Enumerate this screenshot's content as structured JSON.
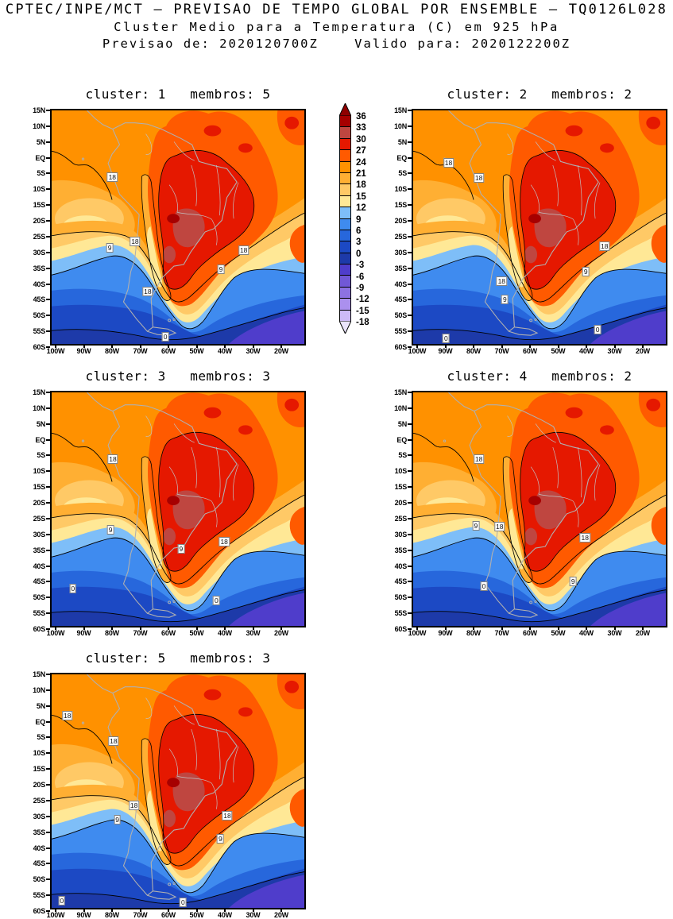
{
  "header": {
    "line1": "CPTEC/INPE/MCT – PREVISAO DE TEMPO GLOBAL POR ENSEMBLE – TQ0126L028",
    "line2": "Cluster Medio para a Temperatura (C) em 925 hPa",
    "line3": "Previsao de: 2020120700Z    Valido para: 2020122200Z"
  },
  "axes": {
    "lat_labels": [
      "15N",
      "10N",
      "5N",
      "EQ",
      "5S",
      "10S",
      "15S",
      "20S",
      "25S",
      "30S",
      "35S",
      "40S",
      "45S",
      "50S",
      "55S",
      "60S"
    ],
    "lon_labels": [
      "100W",
      "90W",
      "80W",
      "70W",
      "60W",
      "50W",
      "40W",
      "30W",
      "20W"
    ]
  },
  "colorbar": {
    "levels": [
      "36",
      "33",
      "30",
      "27",
      "24",
      "21",
      "18",
      "15",
      "12",
      "9",
      "6",
      "3",
      "0",
      "-3",
      "-6",
      "-9",
      "-12",
      "-15",
      "-18"
    ],
    "cell_colors": [
      "#A60000",
      "#BF4640",
      "#E51800",
      "#FF5A00",
      "#FF9100",
      "#FFAF33",
      "#FFC966",
      "#FFE896",
      "#7EBEF8",
      "#3F8BEF",
      "#2767DC",
      "#1C49C4",
      "#1D3AA9",
      "#4F3DCB",
      "#7158D6",
      "#8D72E2",
      "#AB90EE",
      "#CDBAF6"
    ],
    "arrow_top_color": "#8F0000",
    "arrow_bottom_color": "#EAE4FB"
  },
  "chart_data": {
    "type": "heatmap",
    "title": "CPTEC/INPE/MCT – PREVISAO DE TEMPO GLOBAL POR ENSEMBLE – TQ0126L028",
    "subtitle": "Cluster Medio para a Temperatura (C) em 925 hPa",
    "forecast_init": "2020120700Z",
    "forecast_valid": "2020122200Z",
    "model": "TQ0126L028",
    "variable": "Temperatura (C) em 925 hPa",
    "lat_range": [
      "15N",
      "60S"
    ],
    "lon_range": [
      "100W",
      "20W"
    ],
    "contour_interval_c": 3,
    "labeled_contours_c": [
      0,
      9,
      18
    ],
    "colorbar_levels_c": [
      36,
      33,
      30,
      27,
      24,
      21,
      18,
      15,
      12,
      9,
      6,
      3,
      0,
      -3,
      -6,
      -9,
      -12,
      -15,
      -18
    ],
    "panels": [
      {
        "title": "cluster: 1   membros: 5",
        "cluster": 1,
        "membros": 5,
        "contour_labels": [
          {
            "t": "18",
            "x": 0.24,
            "y": 0.285
          },
          {
            "t": "18",
            "x": 0.33,
            "y": 0.56
          },
          {
            "t": "9",
            "x": 0.23,
            "y": 0.59
          },
          {
            "t": "18",
            "x": 0.76,
            "y": 0.6
          },
          {
            "t": "9",
            "x": 0.67,
            "y": 0.68
          },
          {
            "t": "18",
            "x": 0.38,
            "y": 0.775
          },
          {
            "t": "0",
            "x": 0.45,
            "y": 0.97
          }
        ]
      },
      {
        "title": "cluster: 2   membros: 2",
        "cluster": 2,
        "membros": 2,
        "contour_labels": [
          {
            "t": "18",
            "x": 0.14,
            "y": 0.225
          },
          {
            "t": "18",
            "x": 0.26,
            "y": 0.29
          },
          {
            "t": "18",
            "x": 0.757,
            "y": 0.58
          },
          {
            "t": "9",
            "x": 0.683,
            "y": 0.69
          },
          {
            "t": "18",
            "x": 0.35,
            "y": 0.73
          },
          {
            "t": "9",
            "x": 0.363,
            "y": 0.81
          },
          {
            "t": "0",
            "x": 0.73,
            "y": 0.94
          },
          {
            "t": "0",
            "x": 0.13,
            "y": 0.975
          }
        ]
      },
      {
        "title": "cluster: 3   membros: 3",
        "cluster": 3,
        "membros": 3,
        "contour_labels": [
          {
            "t": "18",
            "x": 0.242,
            "y": 0.285
          },
          {
            "t": "9",
            "x": 0.233,
            "y": 0.59
          },
          {
            "t": "9",
            "x": 0.512,
            "y": 0.67
          },
          {
            "t": "18",
            "x": 0.683,
            "y": 0.64
          },
          {
            "t": "0",
            "x": 0.084,
            "y": 0.84
          },
          {
            "t": "0",
            "x": 0.652,
            "y": 0.89
          }
        ]
      },
      {
        "title": "cluster: 4   membros: 2",
        "cluster": 4,
        "membros": 2,
        "contour_labels": [
          {
            "t": "18",
            "x": 0.26,
            "y": 0.285
          },
          {
            "t": "9",
            "x": 0.248,
            "y": 0.57
          },
          {
            "t": "18",
            "x": 0.342,
            "y": 0.574
          },
          {
            "t": "18",
            "x": 0.68,
            "y": 0.624
          },
          {
            "t": "0",
            "x": 0.28,
            "y": 0.83
          },
          {
            "t": "9",
            "x": 0.633,
            "y": 0.81
          }
        ]
      },
      {
        "title": "cluster: 5   membros: 3",
        "cluster": 5,
        "membros": 3,
        "contour_labels": [
          {
            "t": "18",
            "x": 0.062,
            "y": 0.178
          },
          {
            "t": "18",
            "x": 0.245,
            "y": 0.285
          },
          {
            "t": "18",
            "x": 0.326,
            "y": 0.56
          },
          {
            "t": "9",
            "x": 0.26,
            "y": 0.624
          },
          {
            "t": "18",
            "x": 0.695,
            "y": 0.607
          },
          {
            "t": "9",
            "x": 0.668,
            "y": 0.705
          },
          {
            "t": "0",
            "x": 0.04,
            "y": 0.97
          },
          {
            "t": "0",
            "x": 0.52,
            "y": 0.975
          }
        ]
      }
    ]
  }
}
